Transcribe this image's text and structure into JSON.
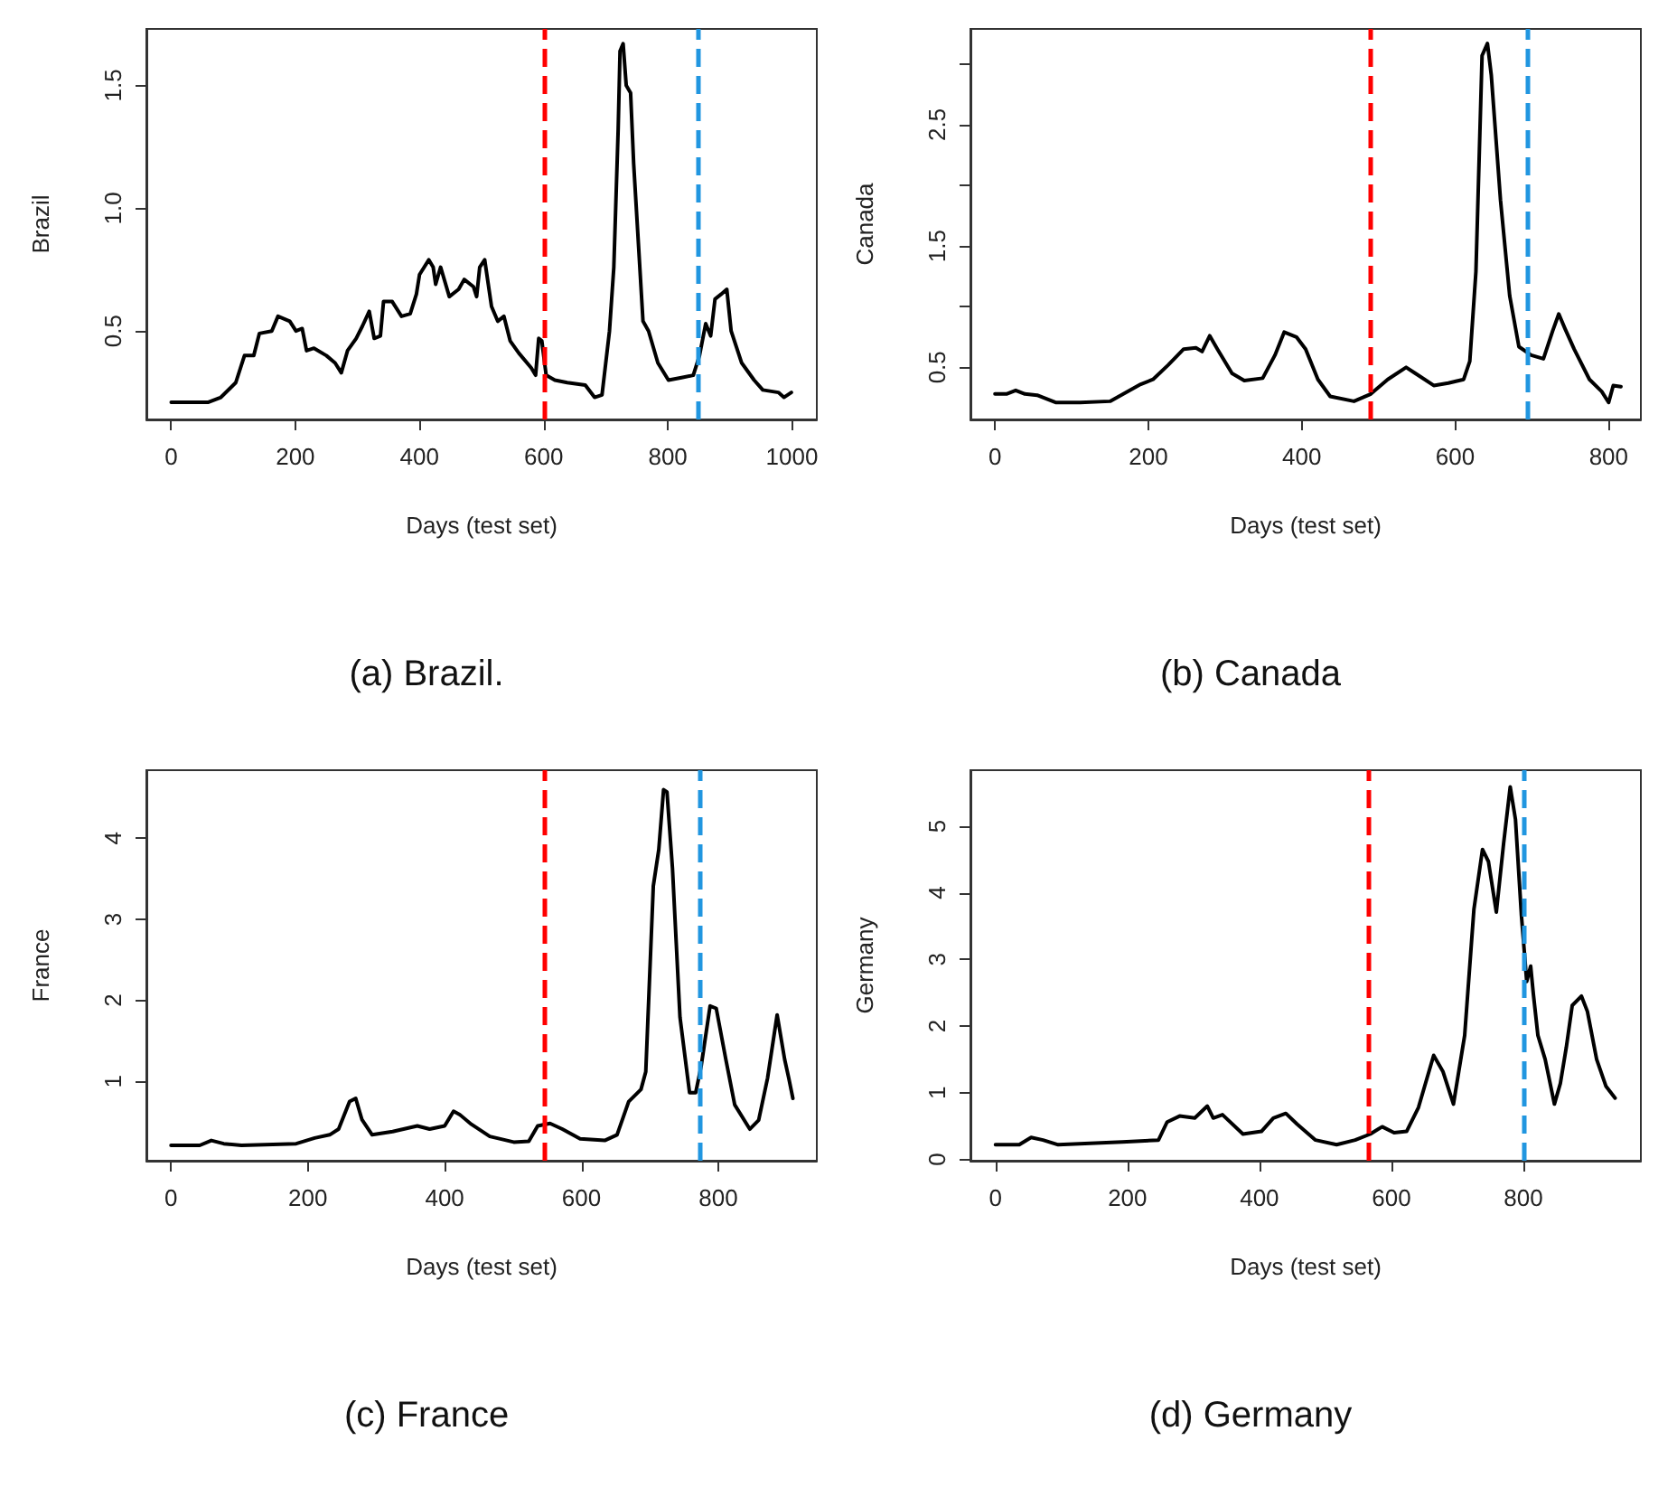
{
  "chart_data": [
    {
      "type": "line",
      "title": "(a) Brazil.",
      "xlabel": "Days (test set)",
      "ylabel": "Brazil",
      "xlim": [
        -40,
        1040
      ],
      "ylim": [
        0.14,
        1.73
      ],
      "xticks": [
        0,
        200,
        400,
        600,
        800,
        1000
      ],
      "yticks": [
        0.5,
        {
          "value": 1,
          "label": "1.0"
        },
        1.5
      ],
      "grid": false,
      "marker": "none",
      "line_style": "solid",
      "x": [
        0,
        60,
        80,
        104,
        118,
        133,
        142,
        162,
        172,
        191,
        201,
        211,
        218,
        230,
        250,
        264,
        274,
        284,
        298,
        308,
        319,
        327,
        337,
        342,
        356,
        371,
        385,
        395,
        400,
        415,
        422,
        426,
        434,
        448,
        463,
        472,
        487,
        492,
        497,
        505,
        516,
        526,
        536,
        546,
        560,
        580,
        587,
        592,
        597,
        604,
        618,
        638,
        667,
        682,
        694,
        706,
        713,
        720,
        723,
        728,
        733,
        740,
        745,
        753,
        760,
        769,
        784,
        801,
        822,
        841,
        851,
        861,
        869,
        876,
        886,
        895,
        902,
        919,
        939,
        953,
        978,
        987,
        999
      ],
      "series": [
        {
          "color": "#000000",
          "values": [
            0.21,
            0.21,
            0.23,
            0.29,
            0.4,
            0.4,
            0.49,
            0.5,
            0.56,
            0.54,
            0.5,
            0.51,
            0.42,
            0.43,
            0.4,
            0.37,
            0.33,
            0.42,
            0.47,
            0.52,
            0.58,
            0.47,
            0.48,
            0.62,
            0.62,
            0.56,
            0.57,
            0.65,
            0.73,
            0.79,
            0.76,
            0.69,
            0.76,
            0.64,
            0.67,
            0.71,
            0.68,
            0.64,
            0.76,
            0.79,
            0.6,
            0.54,
            0.56,
            0.46,
            0.41,
            0.35,
            0.32,
            0.47,
            0.46,
            0.32,
            0.3,
            0.29,
            0.28,
            0.23,
            0.24,
            0.5,
            0.76,
            1.32,
            1.64,
            1.67,
            1.5,
            1.47,
            1.18,
            0.84,
            0.54,
            0.5,
            0.37,
            0.3,
            0.31,
            0.32,
            0.4,
            0.53,
            0.48,
            0.63,
            0.65,
            0.67,
            0.5,
            0.37,
            0.3,
            0.26,
            0.25,
            0.23,
            0.25
          ]
        }
      ],
      "ref_lines": [
        {
          "axis": "x",
          "value": 600,
          "color": "#ff0000",
          "line_style": "dashed"
        },
        {
          "axis": "x",
          "value": 850,
          "color": "#2196e0",
          "line_style": "dashed"
        }
      ]
    },
    {
      "type": "line",
      "title": "(b) Canada",
      "xlabel": "Days (test set)",
      "ylabel": "Canada",
      "xlim": [
        -32,
        842
      ],
      "ylim": [
        0.07,
        3.29
      ],
      "xticks": [
        0,
        200,
        400,
        600,
        800
      ],
      "yticks": [
        0.5,
        {
          "value": 1,
          "label": null
        },
        1.5,
        {
          "value": 2,
          "label": null
        },
        2.5,
        {
          "value": 3,
          "label": null
        }
      ],
      "grid": false,
      "marker": "none",
      "line_style": "solid",
      "x": [
        0,
        15,
        27,
        39,
        55,
        79,
        111,
        150,
        170,
        190,
        206,
        226,
        246,
        262,
        270,
        280,
        290,
        309,
        325,
        349,
        365,
        377,
        393,
        405,
        421,
        437,
        468,
        490,
        512,
        536,
        548,
        572,
        591,
        611,
        619,
        627,
        635,
        642,
        647,
        659,
        671,
        683,
        699,
        715,
        727,
        735,
        743,
        755,
        775,
        791,
        800,
        806,
        816
      ],
      "series": [
        {
          "color": "#000000",
          "values": [
            0.28,
            0.28,
            0.31,
            0.28,
            0.27,
            0.21,
            0.21,
            0.22,
            0.29,
            0.36,
            0.4,
            0.52,
            0.65,
            0.66,
            0.63,
            0.76,
            0.65,
            0.45,
            0.39,
            0.41,
            0.6,
            0.79,
            0.75,
            0.65,
            0.4,
            0.26,
            0.22,
            0.28,
            0.4,
            0.5,
            0.45,
            0.35,
            0.37,
            0.4,
            0.55,
            1.29,
            3.07,
            3.17,
            2.91,
            1.88,
            1.09,
            0.67,
            0.6,
            0.57,
            0.8,
            0.94,
            0.82,
            0.65,
            0.4,
            0.3,
            0.21,
            0.35,
            0.34
          ]
        }
      ],
      "ref_lines": [
        {
          "axis": "x",
          "value": 490,
          "color": "#ff0000",
          "line_style": "dashed"
        },
        {
          "axis": "x",
          "value": 693,
          "color": "#2196e0",
          "line_style": "dashed"
        }
      ]
    },
    {
      "type": "line",
      "title": "(c) France",
      "xlabel": "Days (test set)",
      "ylabel": "France",
      "xlim": [
        -36,
        944
      ],
      "ylim": [
        0.02,
        4.84
      ],
      "xticks": [
        0,
        200,
        400,
        600,
        800
      ],
      "yticks": [
        1,
        2,
        3,
        4
      ],
      "grid": false,
      "marker": "none",
      "line_style": "solid",
      "x": [
        0,
        42,
        59,
        77,
        103,
        183,
        210,
        232,
        245,
        261,
        270,
        279,
        294,
        324,
        360,
        378,
        400,
        413,
        422,
        439,
        466,
        501,
        523,
        536,
        554,
        572,
        598,
        634,
        652,
        669,
        687,
        694,
        705,
        713,
        720,
        725,
        733,
        744,
        758,
        767,
        775,
        788,
        797,
        811,
        824,
        846,
        859,
        872,
        886,
        897,
        903,
        909
      ],
      "series": [
        {
          "color": "#000000",
          "values": [
            0.21,
            0.21,
            0.27,
            0.23,
            0.21,
            0.23,
            0.3,
            0.34,
            0.41,
            0.75,
            0.79,
            0.53,
            0.34,
            0.38,
            0.45,
            0.41,
            0.45,
            0.63,
            0.59,
            0.47,
            0.32,
            0.25,
            0.26,
            0.45,
            0.48,
            0.41,
            0.29,
            0.27,
            0.34,
            0.75,
            0.9,
            1.12,
            3.41,
            3.86,
            4.6,
            4.57,
            3.63,
            1.79,
            0.86,
            0.86,
            1.19,
            1.93,
            1.9,
            1.27,
            0.71,
            0.41,
            0.52,
            1.04,
            1.82,
            1.27,
            1.04,
            0.79
          ]
        }
      ],
      "ref_lines": [
        {
          "axis": "x",
          "value": 546,
          "color": "#ff0000",
          "line_style": "dashed"
        },
        {
          "axis": "x",
          "value": 773,
          "color": "#2196e0",
          "line_style": "dashed"
        }
      ]
    },
    {
      "type": "line",
      "title": "(d) Germany",
      "xlabel": "Days (test set)",
      "ylabel": "Germany",
      "xlim": [
        -38,
        978
      ],
      "ylim": [
        -0.02,
        5.84
      ],
      "xticks": [
        0,
        200,
        400,
        600,
        800
      ],
      "yticks": [
        0,
        1,
        2,
        3,
        4,
        5
      ],
      "grid": false,
      "marker": "none",
      "line_style": "solid",
      "x": [
        0,
        36,
        54,
        72,
        95,
        192,
        247,
        260,
        279,
        302,
        321,
        330,
        344,
        375,
        403,
        421,
        440,
        457,
        485,
        517,
        545,
        568,
        586,
        604,
        623,
        641,
        664,
        678,
        694,
        711,
        725,
        738,
        747,
        759,
        770,
        780,
        788,
        797,
        805,
        811,
        815,
        822,
        833,
        847,
        856,
        865,
        874,
        888,
        897,
        911,
        925,
        939
      ],
      "series": [
        {
          "color": "#000000",
          "values": [
            0.22,
            0.22,
            0.33,
            0.29,
            0.22,
            0.26,
            0.29,
            0.56,
            0.65,
            0.62,
            0.8,
            0.62,
            0.67,
            0.38,
            0.42,
            0.62,
            0.69,
            0.53,
            0.29,
            0.22,
            0.29,
            0.38,
            0.49,
            0.4,
            0.42,
            0.78,
            1.56,
            1.32,
            0.83,
            1.86,
            3.75,
            4.65,
            4.47,
            3.71,
            4.74,
            5.59,
            5.1,
            3.66,
            2.67,
            2.9,
            2.49,
            1.86,
            1.5,
            0.83,
            1.14,
            1.68,
            2.31,
            2.45,
            2.22,
            1.5,
            1.1,
            0.92
          ]
        }
      ],
      "ref_lines": [
        {
          "axis": "x",
          "value": 565,
          "color": "#ff0000",
          "line_style": "dashed"
        },
        {
          "axis": "x",
          "value": 800,
          "color": "#2196e0",
          "line_style": "dashed"
        }
      ]
    }
  ]
}
